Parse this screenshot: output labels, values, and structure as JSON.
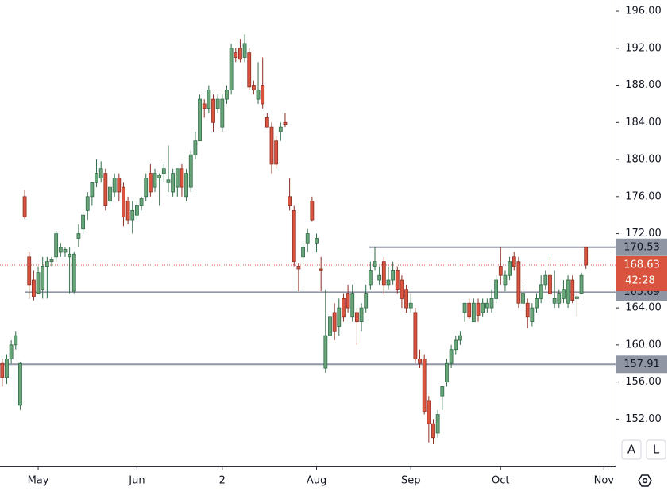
{
  "chart_data": {
    "type": "candlestick",
    "open": [
      158,
      156.5,
      158.5,
      160,
      153.5,
      176,
      169.5,
      167,
      165.5,
      166,
      168.5,
      169,
      169.5,
      170,
      170,
      169.5,
      165.8,
      171.5,
      172.5,
      174.5,
      176,
      177.5,
      178,
      178.5,
      175.5,
      176.5,
      178,
      177,
      175.5,
      173.5,
      174,
      175,
      176,
      178.5,
      177,
      178,
      178.5,
      177.5,
      176.5,
      177,
      179,
      176,
      177,
      180.5,
      182,
      186,
      185.5,
      186.5,
      185.5,
      183.5,
      186.5,
      187.5,
      191.5,
      192,
      191,
      191.5,
      188,
      186.5,
      188,
      184.5,
      183.5,
      182,
      183,
      184,
      176,
      174.5,
      168.5,
      169.5,
      171,
      175.5,
      171,
      168.2,
      157.5,
      161,
      163.5,
      162,
      165,
      165.5,
      163,
      163.5,
      162.5,
      164,
      166.5,
      168.5,
      167,
      169,
      166.5,
      167,
      168,
      167,
      166,
      164,
      163.5,
      158.5,
      158.5,
      154,
      151.5,
      150.5,
      154.5,
      156,
      158,
      159.5,
      160.5,
      163.5,
      164.5,
      162.5,
      164.5,
      163.5,
      164,
      164,
      165,
      168.5,
      166.5,
      167.5,
      169.5,
      169,
      164.5,
      164.5,
      162.5,
      164,
      165,
      166.5,
      167.5,
      164.5,
      164.5,
      165,
      164.5,
      167,
      165,
      165.5,
      170.5
    ],
    "high": [
      158.5,
      159,
      160.5,
      161.5,
      158.2,
      176.7,
      170,
      168,
      168.5,
      169.5,
      169.5,
      169.5,
      172.3,
      171,
      170.5,
      170.5,
      170,
      173,
      174.5,
      176.5,
      177.5,
      180,
      179.8,
      179,
      178,
      178.5,
      178.5,
      177.5,
      176,
      175.5,
      175.5,
      176,
      178.5,
      179.5,
      179,
      178.5,
      179.5,
      181.5,
      179,
      179,
      179.5,
      179,
      181,
      183,
      187,
      186.5,
      188,
      187,
      187,
      187,
      188,
      192.5,
      192,
      193,
      193.5,
      192,
      188.5,
      190.5,
      191,
      185,
      184,
      182.5,
      184,
      185,
      178,
      175,
      168.8,
      171,
      172.5,
      176,
      172,
      169.5,
      166,
      163.5,
      164.5,
      165,
      165.5,
      166.5,
      166.5,
      164,
      164.5,
      166.5,
      169,
      170.5,
      168.5,
      169.5,
      168.5,
      169,
      168.5,
      167.5,
      166.5,
      165.5,
      164,
      159.5,
      159,
      154.5,
      152,
      153,
      155.5,
      158.5,
      160,
      161,
      161.5,
      164.5,
      165,
      165,
      165,
      165,
      165,
      166,
      167.5,
      170.5,
      168,
      169.5,
      170,
      169.5,
      166.5,
      165,
      164.5,
      165.5,
      167.5,
      168,
      169.5,
      168,
      166,
      167,
      167.5,
      167.5,
      165.5,
      167.8,
      170.6
    ],
    "low": [
      155.5,
      155.8,
      158,
      159.5,
      153,
      173.6,
      165,
      164.8,
      165.5,
      165,
      165,
      168.5,
      169,
      169.5,
      169.5,
      165.5,
      165.5,
      170.5,
      172,
      173.5,
      175,
      177,
      177.5,
      174.5,
      175,
      176,
      175.5,
      172.8,
      173,
      172,
      173.5,
      174.5,
      175.5,
      176,
      176.5,
      175,
      177.5,
      176.5,
      176,
      176,
      176,
      175.5,
      176.5,
      180,
      182,
      184.5,
      185,
      183,
      185,
      183,
      186,
      187,
      190.5,
      190.5,
      190.5,
      187.5,
      187,
      186,
      185.5,
      183.5,
      178.5,
      179,
      182,
      183.5,
      174.5,
      168.5,
      165.8,
      168.5,
      170,
      173.3,
      170,
      165.8,
      157,
      160.5,
      160.5,
      161,
      162.5,
      163.5,
      162.5,
      160,
      161.5,
      163.5,
      166,
      168,
      166.5,
      165.5,
      166,
      166.5,
      165.5,
      164,
      163.5,
      163.5,
      158,
      157.5,
      152.5,
      149.5,
      149.3,
      150,
      153,
      155.5,
      157.5,
      159,
      160,
      162.5,
      162.8,
      162.5,
      162.5,
      163,
      163.5,
      163.5,
      164.5,
      166.5,
      165.8,
      167,
      168,
      164,
      164,
      161.8,
      162,
      163.5,
      164.5,
      166,
      165,
      164,
      164,
      164.5,
      164,
      164.5,
      163,
      165.5,
      168.2
    ],
    "close": [
      156.5,
      158.5,
      160,
      161,
      158,
      173.8,
      166.5,
      165.2,
      167.8,
      168.5,
      169,
      169.2,
      172,
      170.5,
      170.3,
      169.8,
      169.8,
      172,
      174,
      176,
      177.5,
      178.5,
      179,
      175,
      177,
      178,
      176.5,
      173.8,
      173.5,
      174.5,
      175,
      175.8,
      178,
      176.5,
      178.5,
      178.3,
      179,
      177.8,
      178.5,
      179,
      177,
      178.5,
      180.5,
      182,
      186.5,
      185.5,
      187.5,
      184,
      186.5,
      186.5,
      187.5,
      192,
      191,
      190.8,
      192.5,
      187.8,
      187.5,
      187.5,
      186,
      183.5,
      179.5,
      179.5,
      183.5,
      183.8,
      175,
      169,
      168.2,
      170.5,
      172,
      173.5,
      171.5,
      168,
      161,
      163,
      161.5,
      164,
      163,
      164,
      165.5,
      162.5,
      164,
      165.5,
      168,
      169,
      167.5,
      166.5,
      167,
      168,
      166,
      165,
      164,
      164.5,
      158.5,
      158,
      152.8,
      151.5,
      150,
      152.5,
      155.5,
      158,
      159.5,
      160.5,
      161,
      164.5,
      163,
      164.5,
      163.2,
      164.5,
      164.5,
      165,
      167,
      167.5,
      167.5,
      169,
      168.5,
      164.5,
      165.5,
      163,
      164,
      165,
      166.5,
      167.5,
      165.5,
      165,
      165.5,
      166,
      167,
      164.8,
      165.2,
      167.5,
      168.63
    ],
    "up_color": "#6aa57a",
    "down_color": "#d9533f",
    "xlim": [
      -0.5,
      136.6
    ],
    "xticks": [
      {
        "value": 8,
        "label": "May"
      },
      {
        "value": 30,
        "label": "Jun"
      },
      {
        "value": 49,
        "label": "2"
      },
      {
        "value": 70,
        "label": "Aug"
      },
      {
        "value": 91,
        "label": "Sep"
      },
      {
        "value": 111,
        "label": "Oct"
      },
      {
        "value": 134,
        "label": "Nov"
      }
    ],
    "ylim": [
      146.9,
      197.2
    ],
    "yticks": [
      {
        "value": 152,
        "label": "152.00"
      },
      {
        "value": 156,
        "label": "156.00"
      },
      {
        "value": 160,
        "label": "160.00"
      },
      {
        "value": 164,
        "label": "164.00"
      },
      {
        "value": 168,
        "label": "168.00"
      },
      {
        "value": 172,
        "label": "172.00"
      },
      {
        "value": 176,
        "label": "176.00"
      },
      {
        "value": 180,
        "label": "180.00"
      },
      {
        "value": 184,
        "label": "184.00"
      },
      {
        "value": 188,
        "label": "188.00"
      },
      {
        "value": 192,
        "label": "192.00"
      },
      {
        "value": 196,
        "label": "196.00"
      }
    ],
    "levels": [
      170.53,
      165.69,
      157.91
    ],
    "level_color": "#8f95a3",
    "countdown": "42:28",
    "buttons": [
      "A",
      "L"
    ]
  }
}
